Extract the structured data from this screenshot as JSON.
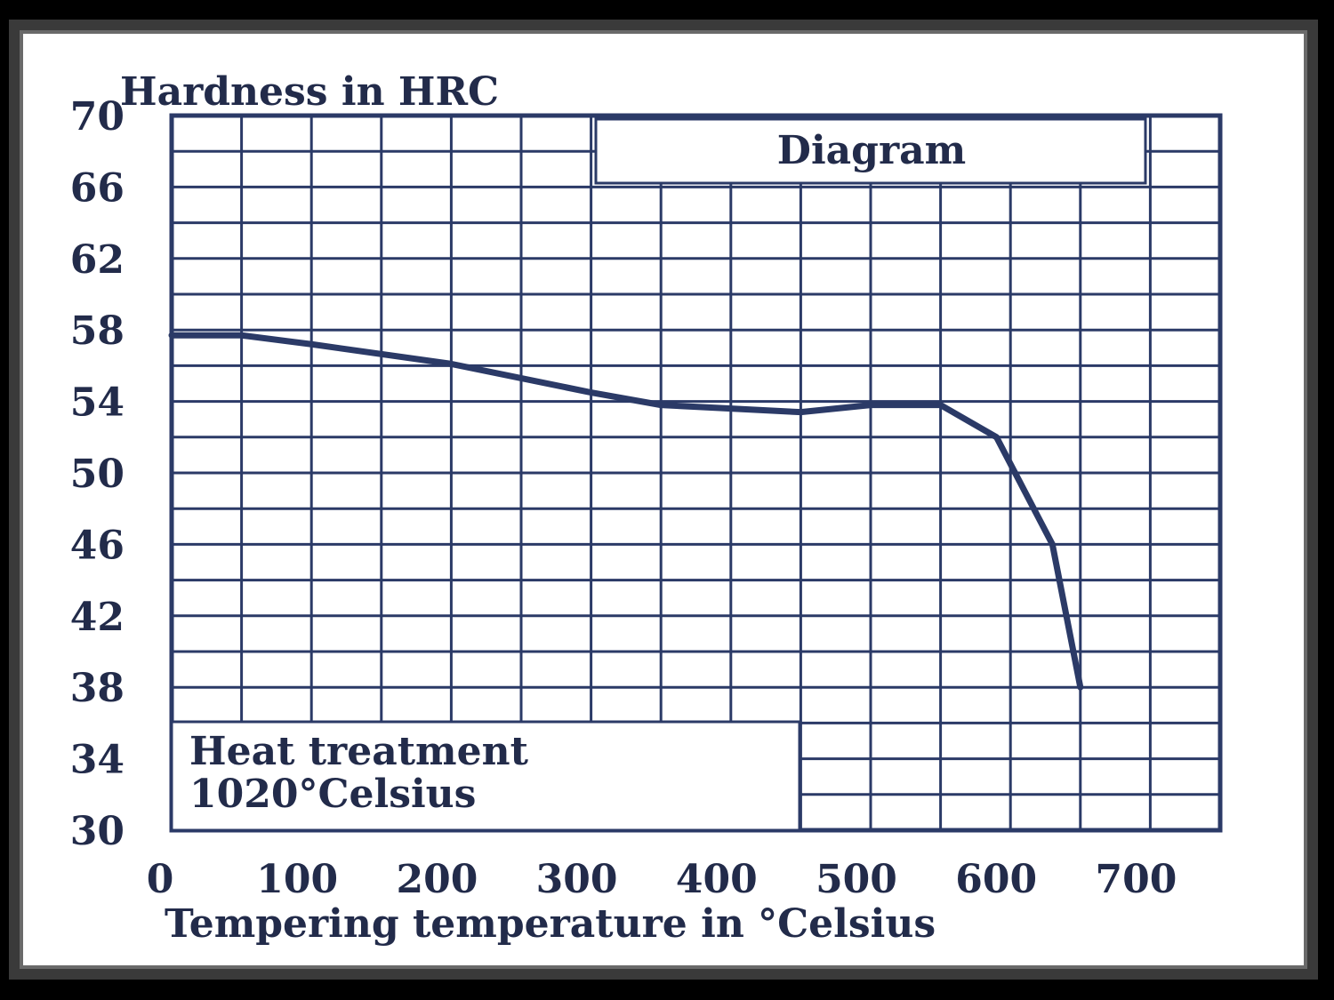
{
  "colors": {
    "ink": "#2b3a67",
    "text": "#222b4a",
    "frame": "#000000"
  },
  "chart_data": {
    "type": "line",
    "ylabel": "Hardness in HRC",
    "xlabel": "Tempering temperature in °Celsius",
    "diagram_label": "Diagram",
    "note": {
      "line1": "Heat treatment",
      "line2": "1020°Celsius"
    },
    "xlim": [
      0,
      750
    ],
    "ylim": [
      30,
      70
    ],
    "x_ticks": [
      "0",
      "100",
      "200",
      "300",
      "400",
      "500",
      "600",
      "700"
    ],
    "y_ticks": [
      "70",
      "66",
      "62",
      "58",
      "54",
      "50",
      "46",
      "42",
      "38",
      "34",
      "30"
    ],
    "grid": true,
    "series": [
      {
        "x": [
          0,
          50,
          100,
          200,
          300,
          350,
          400,
          450,
          500,
          550,
          590,
          610,
          630,
          650
        ],
        "y": [
          57.7,
          57.7,
          57.2,
          56.1,
          54.5,
          53.8,
          53.6,
          53.4,
          53.8,
          53.8,
          52.0,
          49.0,
          46.0,
          38.0
        ]
      }
    ]
  }
}
